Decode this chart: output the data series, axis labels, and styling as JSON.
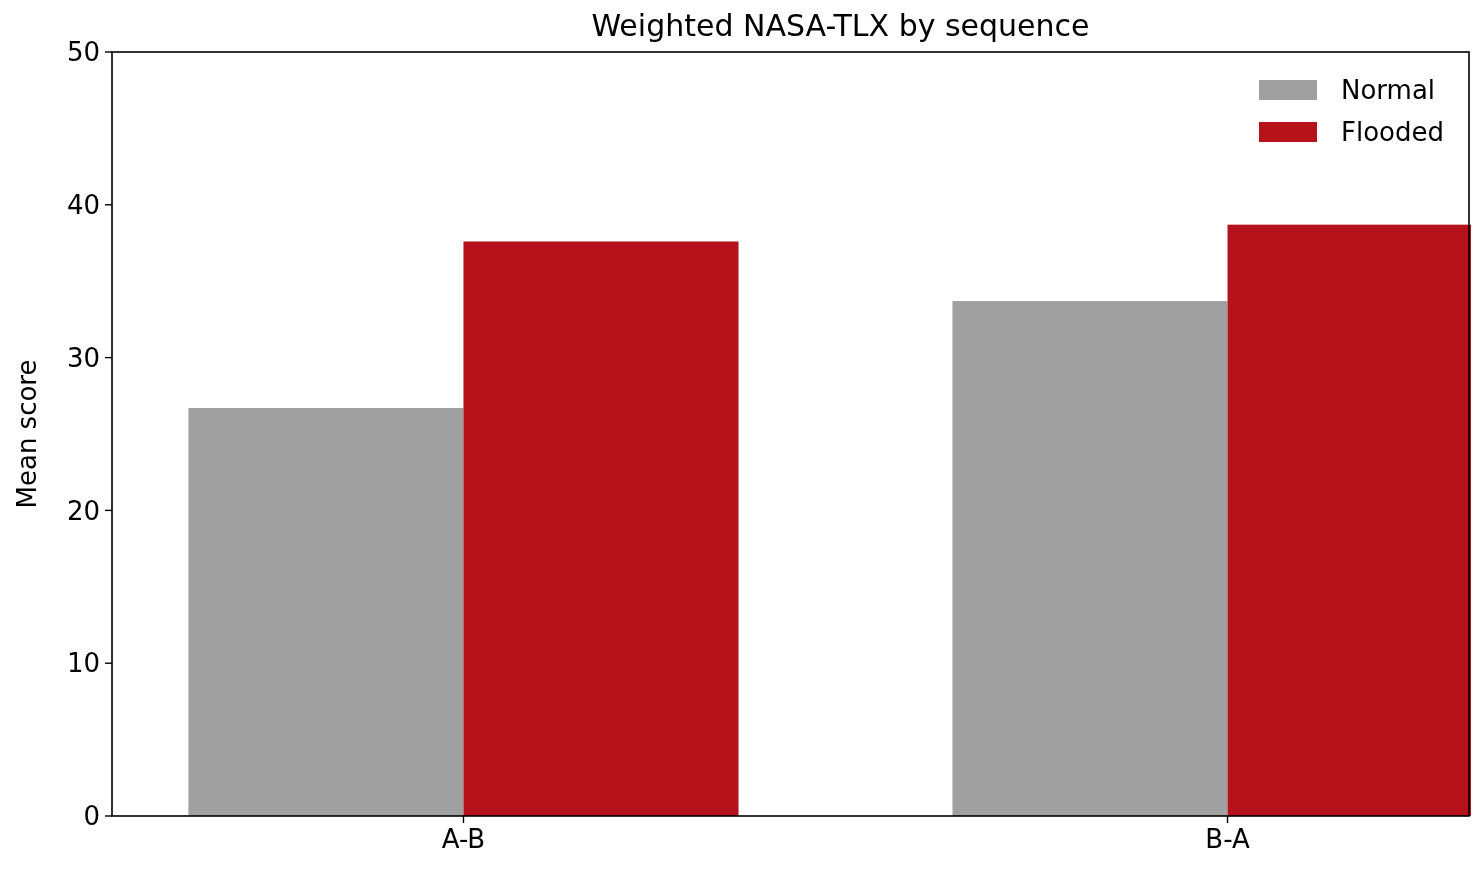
{
  "chart_data": {
    "type": "bar",
    "title": "Weighted NASA-TLX by sequence",
    "ylabel": "Mean score",
    "categories": [
      "A-B",
      "B-A"
    ],
    "series": [
      {
        "name": "Normal",
        "color": "#a0a0a0",
        "values": [
          26.7,
          33.7
        ]
      },
      {
        "name": "Flooded",
        "color": "#b5121b",
        "values": [
          37.6,
          38.7
        ]
      }
    ],
    "ylim": [
      0,
      50
    ],
    "yticks": [
      0,
      10,
      20,
      30,
      40,
      50
    ],
    "grid": false,
    "legend": "top right"
  }
}
